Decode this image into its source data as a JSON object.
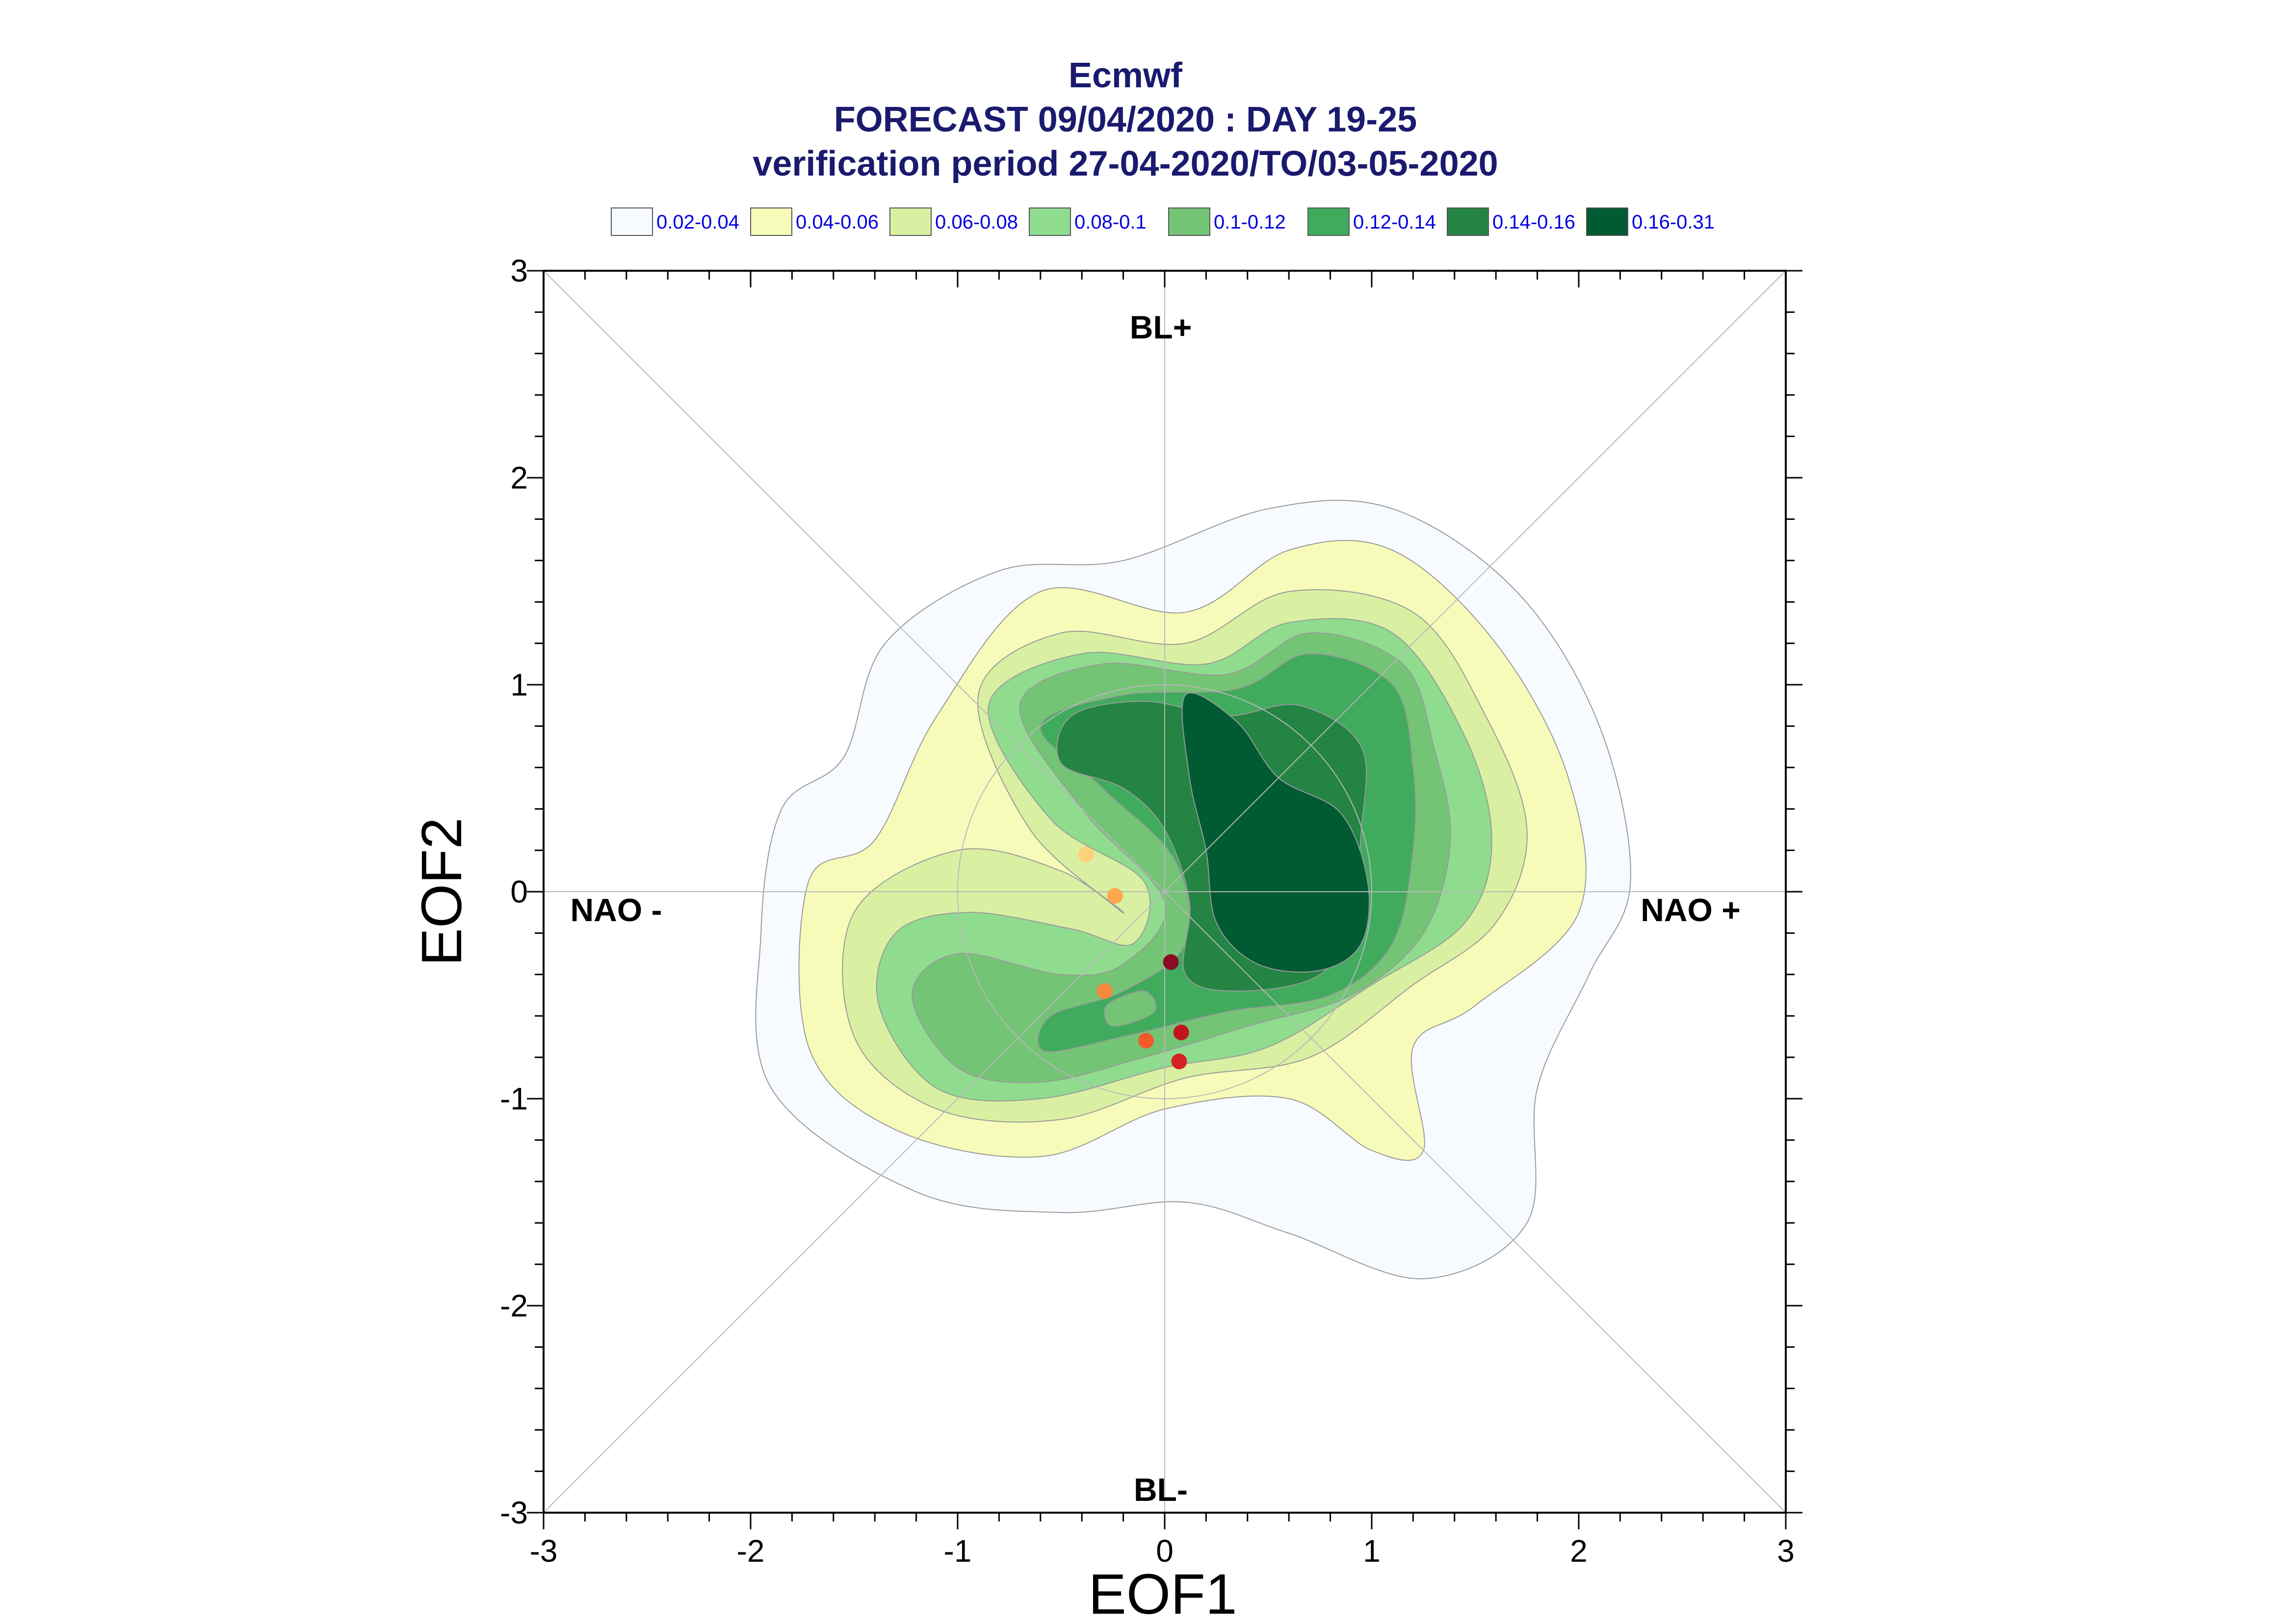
{
  "title_lines": [
    "Ecmwf",
    "FORECAST 09/04/2020 : DAY 19-25",
    "verification period 27-04-2020/TO/03-05-2020"
  ],
  "legend": [
    {
      "label": "0.02-0.04",
      "color": "#f7fbff"
    },
    {
      "label": "0.04-0.06",
      "color": "#f7fbb9"
    },
    {
      "label": "0.06-0.08",
      "color": "#d9f0a3"
    },
    {
      "label": "0.08-0.1",
      "color": "#8fdc8f"
    },
    {
      "label": "0.1-0.12",
      "color": "#74c476"
    },
    {
      "label": "0.12-0.14",
      "color": "#41ab5d"
    },
    {
      "label": "0.14-0.16",
      "color": "#238443"
    },
    {
      "label": "0.16-0.31",
      "color": "#005a32"
    }
  ],
  "regime_labels": {
    "top": "BL+",
    "bottom": "BL-",
    "left": "NAO -",
    "right": "NAO +"
  },
  "chart_data": {
    "type": "scatter",
    "title": "Ecmwf FORECAST 09/04/2020 : DAY 19-25 verification period 27-04-2020/TO/03-05-2020",
    "xlabel": "EOF1",
    "ylabel": "EOF2",
    "xlim": [
      -3,
      3
    ],
    "ylim": [
      -3,
      3
    ],
    "x_ticks": [
      "-3",
      "-2",
      "-1",
      "0",
      "1",
      "2",
      "3"
    ],
    "y_ticks": [
      "3",
      "2",
      "1",
      "0",
      "-1",
      "-2",
      "-3"
    ],
    "grid": "diagonals and zero lines, unit circle",
    "legend_position": "top",
    "points": [
      {
        "x": -0.38,
        "y": 0.18,
        "color": "#fdd07a"
      },
      {
        "x": -0.24,
        "y": -0.02,
        "color": "#fca64e"
      },
      {
        "x": 0.03,
        "y": -0.34,
        "color": "#8b0a26"
      },
      {
        "x": -0.29,
        "y": -0.48,
        "color": "#f58a3c"
      },
      {
        "x": 0.08,
        "y": -0.68,
        "color": "#c0151f"
      },
      {
        "x": -0.09,
        "y": -0.72,
        "color": "#f25a2a"
      },
      {
        "x": 0.07,
        "y": -0.82,
        "color": "#d62125"
      }
    ]
  }
}
